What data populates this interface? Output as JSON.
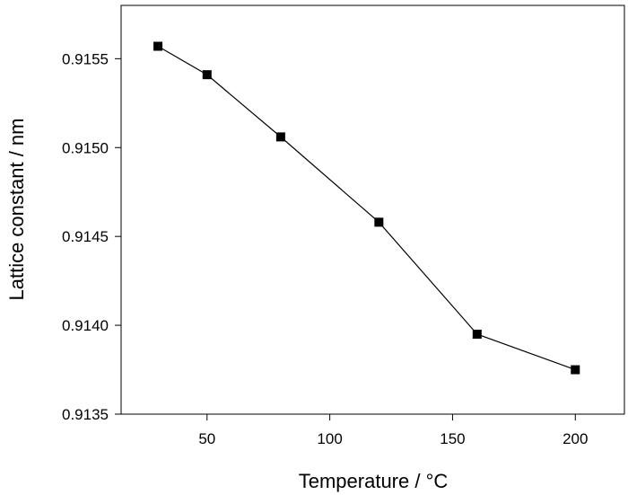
{
  "chart_data": {
    "type": "line",
    "title": "",
    "xlabel": "Temperature / °C",
    "ylabel": "Lattice constant / nm",
    "xlim": [
      15,
      220
    ],
    "ylim": [
      0.9135,
      0.9158
    ],
    "x_ticks": [
      50,
      100,
      150,
      200
    ],
    "x_tick_labels": [
      "50",
      "100",
      "150",
      "200"
    ],
    "y_ticks": [
      0.9135,
      0.914,
      0.9145,
      0.915,
      0.9155
    ],
    "y_tick_labels": [
      "0.9135",
      "0.9140",
      "0.9145",
      "0.9150",
      "0.9155"
    ],
    "grid": false,
    "marker": "square",
    "color": "#000000",
    "series": [
      {
        "x": [
          30,
          50,
          80,
          120,
          160,
          200
        ],
        "y": [
          0.91557,
          0.91541,
          0.91506,
          0.91458,
          0.91395,
          0.91375
        ]
      }
    ]
  }
}
